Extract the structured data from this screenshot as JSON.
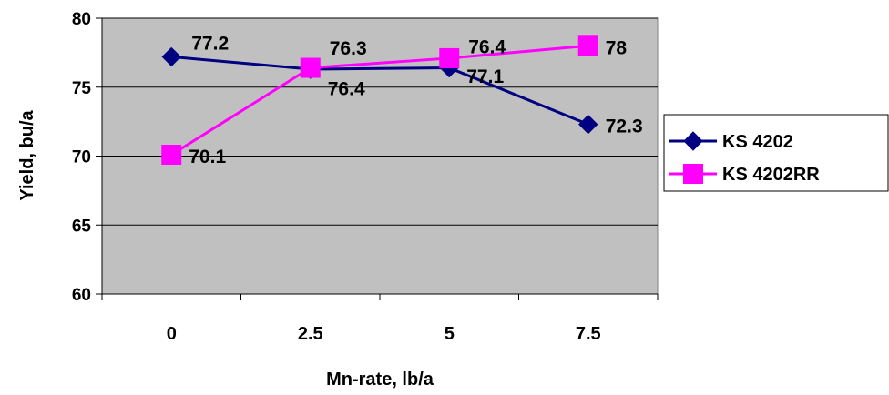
{
  "chart_data": {
    "type": "line",
    "title": "",
    "xlabel": "Mn-rate, lb/a",
    "ylabel": "Yield, bu/a",
    "categories": [
      "0",
      "2.5",
      "5",
      "7.5"
    ],
    "ylim": [
      60,
      80
    ],
    "yticks": [
      60,
      65,
      70,
      75,
      80
    ],
    "grid": true,
    "legend_position": "right",
    "plot_background": "#c0c0c0",
    "series": [
      {
        "name": "KS 4202",
        "values": [
          77.2,
          76.3,
          76.4,
          72.3
        ],
        "labels": [
          "77.2",
          "76.3",
          "76.4",
          "72.3"
        ],
        "color": "#000080",
        "marker": "diamond"
      },
      {
        "name": "KS 4202RR",
        "values": [
          70.1,
          76.4,
          77.1,
          78
        ],
        "labels": [
          "70.1",
          "76.4",
          "77.1",
          "78"
        ],
        "color": "#ff00ff",
        "marker": "square"
      }
    ]
  }
}
